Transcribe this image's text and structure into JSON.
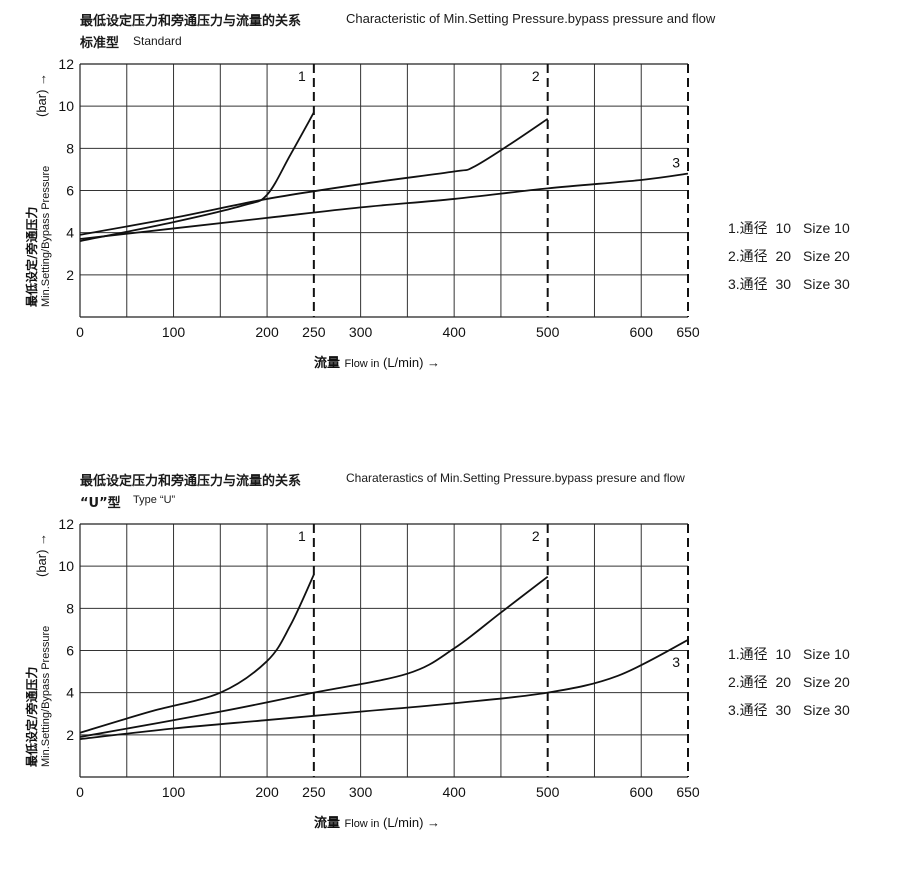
{
  "chart_data": [
    {
      "type": "line",
      "title_cn": "最低设定压力和旁通压力与流量的关系",
      "title": "Characteristic of Min.Setting Pressure.bypass pressure and flow",
      "subtitle_cn": "标准型",
      "subtitle": "Standard",
      "xlabel_cn": "流量",
      "xlabel": "Flow in (L/min) →",
      "ylabel_cn": "最低设定/旁通压力",
      "ylabel": "Min.Setting/Bypass Pressure",
      "yunit": "(bar) →",
      "xlim": [
        0,
        650
      ],
      "ylim": [
        0,
        12
      ],
      "xticks": [
        "0",
        "100",
        "200",
        "250",
        "300",
        "400",
        "500",
        "600",
        "650"
      ],
      "xtick_values": [
        0,
        100,
        200,
        250,
        300,
        400,
        500,
        600,
        650
      ],
      "yticks": [
        "2",
        "4",
        "6",
        "8",
        "10",
        "12"
      ],
      "ytick_values": [
        2,
        4,
        6,
        8,
        10,
        12
      ],
      "grid": true,
      "limit_lines": [
        {
          "label": "1",
          "x": 250
        },
        {
          "label": "2",
          "x": 500
        },
        {
          "label": "3",
          "x": 650
        }
      ],
      "series": [
        {
          "name": "1",
          "x": [
            0,
            100,
            175,
            200,
            225,
            250
          ],
          "y": [
            3.6,
            4.5,
            5.3,
            5.8,
            7.7,
            9.7
          ]
        },
        {
          "name": "2",
          "x": [
            0,
            100,
            200,
            300,
            400,
            420,
            460,
            500
          ],
          "y": [
            3.9,
            4.7,
            5.6,
            6.3,
            6.9,
            7.1,
            8.2,
            9.4
          ]
        },
        {
          "name": "3",
          "x": [
            0,
            100,
            200,
            300,
            400,
            500,
            600,
            650
          ],
          "y": [
            3.7,
            4.2,
            4.7,
            5.2,
            5.6,
            6.1,
            6.5,
            6.8
          ]
        }
      ],
      "legend": [
        {
          "num": "1.通径",
          "val": "10",
          "en": "Size 10"
        },
        {
          "num": "2.通径",
          "val": "20",
          "en": "Size 20"
        },
        {
          "num": "3.通径",
          "val": "30",
          "en": "Size 30"
        }
      ]
    },
    {
      "type": "line",
      "title_cn": "最低设定压力和旁通压力与流量的关系",
      "title": "Charaterastics of Min.Setting Pressure.bypass presure and flow",
      "subtitle_cn": "“U”型",
      "subtitle": "Type “U”",
      "xlabel_cn": "流量",
      "xlabel": "Flow in (L/min) →",
      "ylabel_cn": "最低设定/旁通压力",
      "ylabel": "Min.Setting/Bypass Pressure",
      "yunit": "(bar) →",
      "xlim": [
        0,
        650
      ],
      "ylim": [
        0,
        12
      ],
      "xticks": [
        "0",
        "100",
        "200",
        "250",
        "300",
        "400",
        "500",
        "600",
        "650"
      ],
      "xtick_values": [
        0,
        100,
        200,
        250,
        300,
        400,
        500,
        600,
        650
      ],
      "yticks": [
        "2",
        "4",
        "6",
        "8",
        "10",
        "12"
      ],
      "ytick_values": [
        2,
        4,
        6,
        8,
        10,
        12
      ],
      "grid": true,
      "limit_lines": [
        {
          "label": "1",
          "x": 250
        },
        {
          "label": "2",
          "x": 500
        },
        {
          "label": "3",
          "x": 650
        }
      ],
      "series": [
        {
          "name": "1",
          "x": [
            0,
            75,
            150,
            200,
            225,
            250
          ],
          "y": [
            2.1,
            3.1,
            4.0,
            5.5,
            7.2,
            9.6
          ]
        },
        {
          "name": "2",
          "x": [
            0,
            150,
            250,
            350,
            400,
            450,
            500
          ],
          "y": [
            1.9,
            3.1,
            4.0,
            4.9,
            6.1,
            7.8,
            9.5
          ]
        },
        {
          "name": "3",
          "x": [
            0,
            100,
            200,
            300,
            400,
            500,
            575,
            650
          ],
          "y": [
            1.8,
            2.3,
            2.7,
            3.1,
            3.5,
            4.0,
            4.8,
            6.5
          ]
        }
      ],
      "legend": [
        {
          "num": "1.通径",
          "val": "10",
          "en": "Size 10"
        },
        {
          "num": "2.通径",
          "val": "20",
          "en": "Size 20"
        },
        {
          "num": "3.通径",
          "val": "30",
          "en": "Size 30"
        }
      ]
    }
  ]
}
